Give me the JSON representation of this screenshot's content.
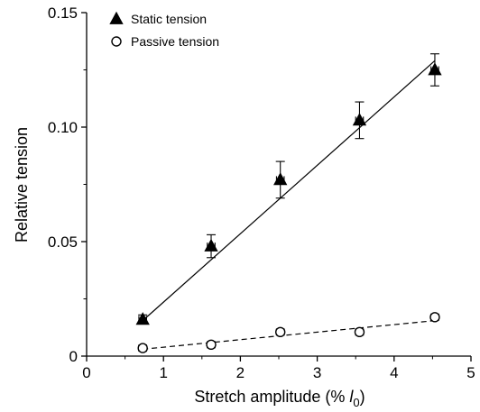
{
  "chart_data": {
    "type": "scatter",
    "xlabel": "Stretch amplitude (% l",
    "xlabel_subscript": "0",
    "xlabel_suffix": ")",
    "ylabel": "Relative tension",
    "xlim": [
      0,
      5
    ],
    "ylim": [
      0,
      0.15
    ],
    "xticks": [
      0,
      1,
      2,
      3,
      4,
      5
    ],
    "xtick_labels": [
      "0",
      "1",
      "2",
      "3",
      "4",
      "5"
    ],
    "yticks": [
      0,
      0.05,
      0.1,
      0.15
    ],
    "ytick_labels": [
      "0",
      "0.05",
      "0.10",
      "0.15"
    ],
    "grid": false,
    "legend_position": "top-left",
    "series": [
      {
        "name": "Static tension",
        "marker": "filled-triangle",
        "x": [
          0.73,
          1.62,
          2.52,
          3.55,
          4.53
        ],
        "y": [
          0.016,
          0.048,
          0.077,
          0.103,
          0.125
        ],
        "y_err": [
          0.002,
          0.005,
          0.008,
          0.008,
          0.007
        ],
        "x_err": [
          0.05,
          0.05,
          0.05,
          0.05,
          0.05
        ],
        "fit": {
          "style": "solid",
          "x": [
            0.73,
            4.53
          ],
          "y": [
            0.0155,
            0.129
          ]
        }
      },
      {
        "name": "Passive tension",
        "marker": "open-circle",
        "x": [
          0.73,
          1.62,
          2.52,
          3.55,
          4.53
        ],
        "y": [
          0.0035,
          0.005,
          0.0105,
          0.0105,
          0.017
        ],
        "y_err": [
          0.001,
          0.001,
          0.001,
          0.001,
          0.001
        ],
        "x_err": [
          0.05,
          0.05,
          0.05,
          0.05,
          0.05
        ],
        "fit": {
          "style": "dashed",
          "x": [
            0.73,
            4.53
          ],
          "y": [
            0.003,
            0.0155
          ]
        }
      }
    ]
  }
}
